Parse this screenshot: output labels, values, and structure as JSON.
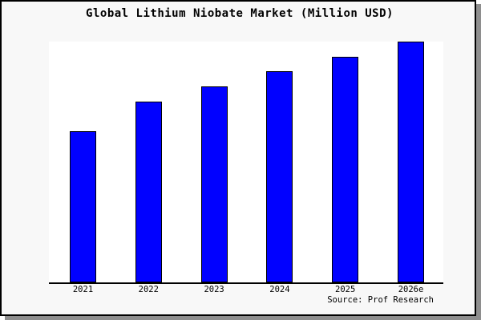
{
  "header": {
    "title": "Global Lithium Niobate Market (Million USD)"
  },
  "footer": {
    "source": "Source: Prof Research"
  },
  "colors": {
    "bar_fill": "#0101ff",
    "bar_border": "#000000",
    "card_background": "#f8f8f8",
    "plot_background": "#ffffff",
    "axis": "#000000",
    "text": "#000000",
    "shadow": "#8e8e8e"
  },
  "chart_data": {
    "type": "bar",
    "title": "Global Lithium Niobate Market (Million USD)",
    "categories": [
      "2021",
      "2022",
      "2023",
      "2024",
      "2025",
      "2026e"
    ],
    "values": [
      62.9,
      75.2,
      81.5,
      87.7,
      93.7,
      100
    ],
    "xlabel": "",
    "ylabel": "",
    "ylim": [
      0,
      100
    ],
    "y_axis_visible": false,
    "grid": false,
    "legend": "none",
    "value_note": "No y-axis ticks or data labels are shown in the image; values estimated from bar heights, normalized so 2026e = 100.",
    "source_annotation": "Source: Prof Research"
  }
}
